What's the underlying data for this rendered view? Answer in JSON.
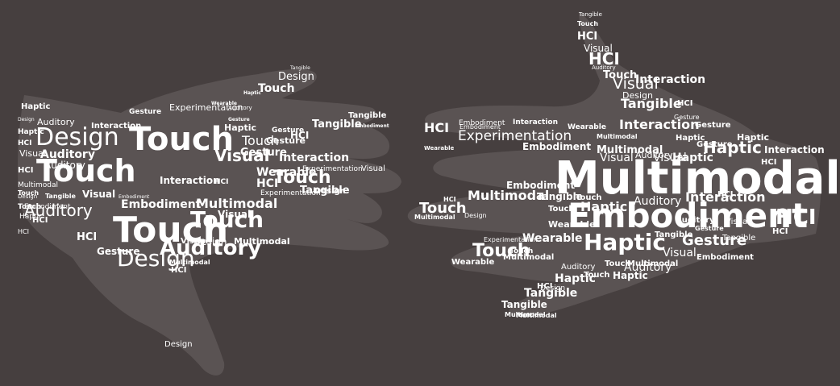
{
  "colors": {
    "background": "#463f3f",
    "hand_shape": "#5a5353",
    "text": "#ffffff"
  },
  "left_hand_words": [
    "Tangible",
    "Design",
    "Touch",
    "Haptic",
    "Wearable",
    "Auditory",
    "Haptic",
    "Gesture",
    "Experimentation",
    "Gesture",
    "Design",
    "Interaction",
    "Touch",
    "Tangible",
    "Embodiment",
    "Auditory",
    "Gesture",
    "Haptic",
    "HCI",
    "Design",
    "Haptic",
    "Tangible",
    "Gesture",
    "HCI",
    "Touch",
    "Auditory",
    "Gesture",
    "Visual",
    "Touch",
    "Visual",
    "Interaction",
    "HCI",
    "Wearable",
    "Experimentation",
    "HCI",
    "Visual",
    "Auditory",
    "Experimentation",
    "Touch",
    "Multimodal",
    "Interaction",
    "Design",
    "Auditory",
    "Embodiment",
    "HCI",
    "Visual",
    "Tangible",
    "Touch",
    "Embodiment",
    "Touch",
    "Design",
    "Touch",
    "Embodiment",
    "Tangible",
    "Multimodal",
    "Visual",
    "Haptic",
    "Touch",
    "HCI",
    "HCI",
    "Visual",
    "Auditory",
    "Design",
    "HCI",
    "Multimodal",
    "Gesture",
    "HCI",
    "Design",
    "Multimodal",
    "Design"
  ],
  "right_hand_words": [
    "Tangible",
    "Touch",
    "HCI",
    "Visual",
    "HCI",
    "Auditory",
    "Touch",
    "Visual",
    "Design",
    "Interaction",
    "Tangible",
    "HCI",
    "Embodiment",
    "HCI",
    "Experimentation",
    "Interaction",
    "Interaction",
    "Gesture",
    "Wearable",
    "Gesture",
    "Embodiment",
    "Haptic",
    "Interaction",
    "Multimodal",
    "Haptic",
    "Gesture",
    "Haptic",
    "Visual",
    "Multimodal",
    "Embodiment",
    "HCI",
    "Multimodal",
    "Wearable",
    "Auditory",
    "Visual",
    "Haptic",
    "Touch",
    "Multimodal",
    "Embodiment",
    "HCI",
    "Tangible",
    "Interaction",
    "Auditory",
    "Haptic",
    "Embodiment",
    "Touch",
    "HCI",
    "Touch",
    "Design",
    "Multimodal",
    "Wearable",
    "Haptic",
    "Auditory",
    "Gesture",
    "Tangible",
    "Touch",
    "Multimodal",
    "HCI",
    "Wearable",
    "Experimentation",
    "Visual",
    "Gesture",
    "Touch",
    "Visual",
    "Auditory",
    "Tangible",
    "Wearable",
    "Embodiment",
    "Touch",
    "Haptic",
    "Auditory",
    "Multimodal",
    "Haptic",
    "HCI",
    "HCI",
    "Tangible",
    "Touch",
    "Multimodal",
    "Tangible",
    "Design",
    "Multimodal"
  ]
}
